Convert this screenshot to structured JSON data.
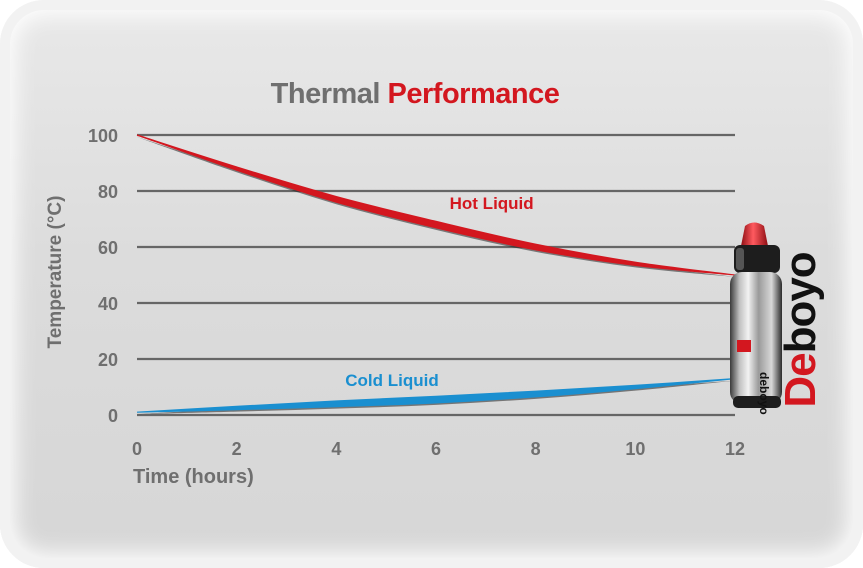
{
  "chart_data": {
    "type": "line",
    "title": {
      "part1": "Thermal",
      "part2": "Performance"
    },
    "xlabel": "Time (hours)",
    "ylabel": "Temperature (°C)",
    "xlim": [
      0,
      12
    ],
    "ylim": [
      0,
      100
    ],
    "xticks": [
      0,
      2,
      4,
      6,
      8,
      10,
      12
    ],
    "yticks": [
      0,
      20,
      40,
      60,
      80,
      100
    ],
    "grid": true,
    "series": [
      {
        "name": "Hot Liquid",
        "color": "#d3171f",
        "x": [
          0,
          2,
          4,
          6,
          8,
          10,
          12
        ],
        "y": [
          100,
          88,
          77,
          68,
          60,
          54,
          50
        ]
      },
      {
        "name": "Cold Liquid",
        "color": "#1a8fd0",
        "x": [
          0,
          2,
          4,
          6,
          8,
          10,
          12
        ],
        "y": [
          1,
          2.5,
          4,
          5.5,
          7.5,
          10,
          13
        ]
      }
    ]
  },
  "bottle": {
    "logo_part1": "De",
    "logo_part2": "boyo",
    "side_text": "deboyo"
  },
  "colors": {
    "title_gray": "#6f6f6f",
    "accent_red": "#d3171f",
    "cold_blue": "#1a8fd0",
    "grid": "#666666"
  }
}
